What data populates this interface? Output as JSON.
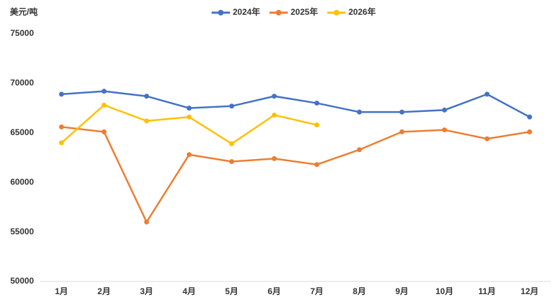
{
  "chart_data": {
    "type": "line",
    "y_label": "美元/吨",
    "categories": [
      "1月",
      "2月",
      "3月",
      "4月",
      "5月",
      "6月",
      "7月",
      "8月",
      "9月",
      "10月",
      "11月",
      "12月"
    ],
    "series": [
      {
        "name": "2024年",
        "color": "#4472c4",
        "values": [
          68900,
          69200,
          68700,
          67500,
          67700,
          68700,
          68000,
          67100,
          67100,
          67300,
          68900,
          66600
        ]
      },
      {
        "name": "2025年",
        "color": "#ed7d31",
        "values": [
          65600,
          65100,
          56000,
          62800,
          62100,
          62400,
          61800,
          63300,
          65100,
          65300,
          64400,
          65100
        ]
      },
      {
        "name": "2026年",
        "color": "#ffc000",
        "values": [
          64000,
          67800,
          66200,
          66600,
          63900,
          66800,
          65800,
          null,
          null,
          null,
          null,
          null
        ]
      }
    ],
    "ylim": [
      50000,
      75000
    ],
    "yticks": [
      50000,
      55000,
      60000,
      65000,
      70000,
      75000
    ],
    "grid": false,
    "legend": "top"
  }
}
